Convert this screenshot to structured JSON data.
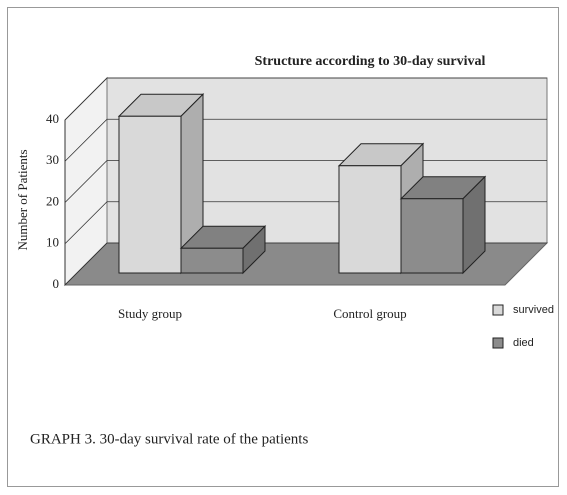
{
  "chart_data": {
    "type": "bar3d",
    "title": "Structure according to 30-day survival",
    "ylabel": "Number of Patients",
    "categories": [
      "Study group",
      "Control group"
    ],
    "series": [
      {
        "name": "survived",
        "color": "#d9d9d9",
        "values": [
          38,
          26
        ]
      },
      {
        "name": "died",
        "color": "#8c8c8c",
        "values": [
          6,
          18
        ]
      }
    ],
    "ylim": [
      0,
      40
    ],
    "yticks": [
      0,
      10,
      20,
      30,
      40
    ],
    "grid": true,
    "legend": "right"
  },
  "caption": "GRAPH 3.  30-day survival rate of the patients"
}
